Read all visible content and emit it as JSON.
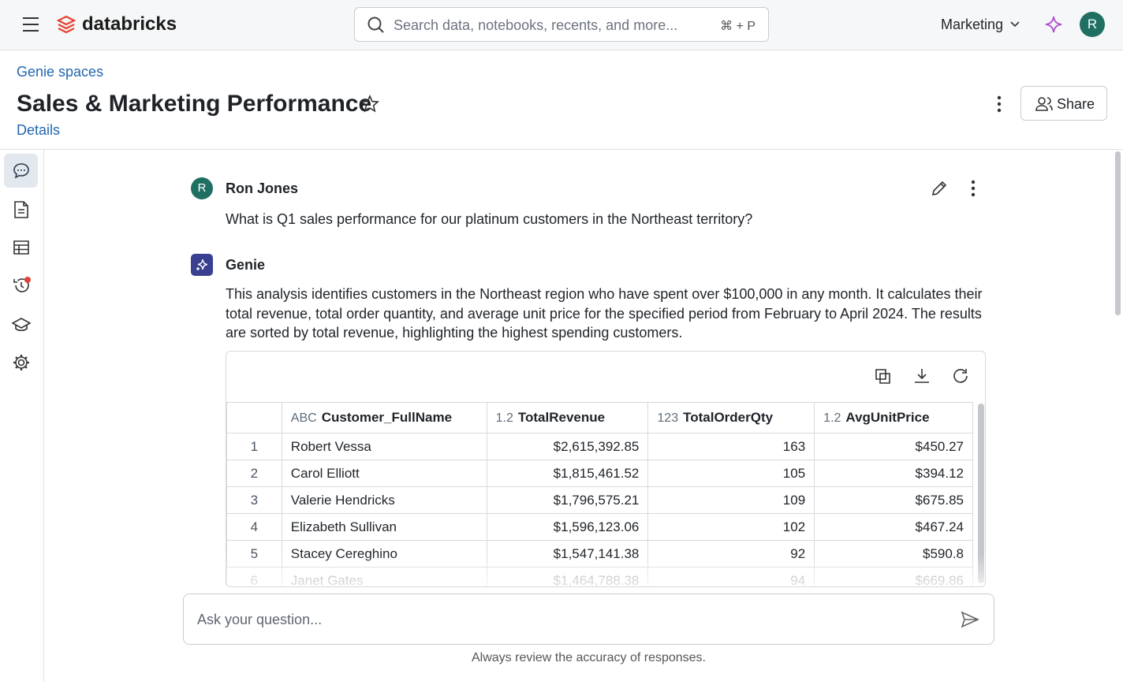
{
  "topbar": {
    "brand": "databricks",
    "search_placeholder": "Search data, notebooks, recents, and more...",
    "shortcut": "⌘ + P",
    "workspace": "Marketing",
    "avatar": "R"
  },
  "header": {
    "breadcrumb": "Genie spaces",
    "title": "Sales & Marketing Performance",
    "details": "Details",
    "share": "Share"
  },
  "conversation": {
    "user": {
      "avatar": "R",
      "name": "Ron Jones",
      "message": "What is Q1 sales performance for our platinum customers in the Northeast territory?"
    },
    "genie": {
      "name": "Genie",
      "message": "This analysis identifies customers in the Northeast region who have spent over $100,000 in any month. It calculates their total revenue, total order quantity, and average unit price for the specified period from February to April 2024. The results are sorted by total revenue, highlighting the highest spending customers."
    }
  },
  "table": {
    "columns": [
      {
        "type": "ABC",
        "name": "Customer_FullName"
      },
      {
        "type": "1.2",
        "name": "TotalRevenue"
      },
      {
        "type": "123",
        "name": "TotalOrderQty"
      },
      {
        "type": "1.2",
        "name": "AvgUnitPrice"
      }
    ],
    "rows": [
      [
        "1",
        "Robert Vessa",
        "$2,615,392.85",
        "163",
        "$450.27"
      ],
      [
        "2",
        "Carol Elliott",
        "$1,815,461.52",
        "105",
        "$394.12"
      ],
      [
        "3",
        "Valerie Hendricks",
        "$1,796,575.21",
        "109",
        "$675.85"
      ],
      [
        "4",
        "Elizabeth Sullivan",
        "$1,596,123.06",
        "102",
        "$467.24"
      ],
      [
        "5",
        "Stacey Cereghino",
        "$1,547,141.38",
        "92",
        "$590.8"
      ],
      [
        "6",
        "Janet Gates",
        "$1,464,788.38",
        "94",
        "$669.86"
      ]
    ]
  },
  "composer": {
    "placeholder": "Ask your question...",
    "disclaimer": "Always review the accuracy of responses."
  }
}
